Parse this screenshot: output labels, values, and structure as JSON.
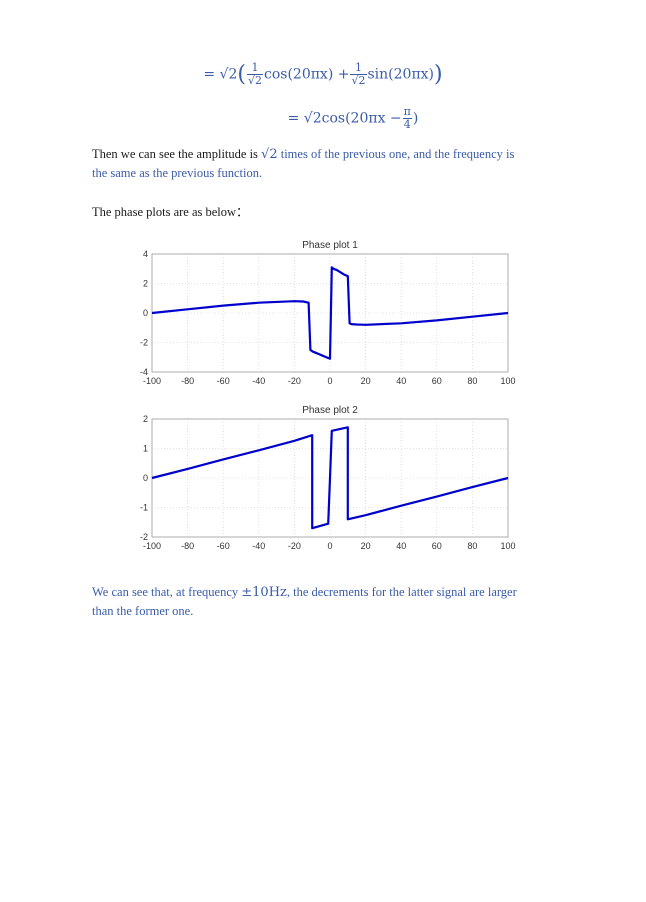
{
  "equations": {
    "line1": {
      "lead": "= √2",
      "open": "(",
      "frac1_num": "1",
      "frac1_den": "√2",
      "term1": "cos(20πx) +",
      "frac2_num": "1",
      "frac2_den": "√2",
      "term2": "sin(20πx)",
      "close": ")"
    },
    "line2": {
      "lead": "= √2cos(20πx −",
      "frac_num": "π",
      "frac_den": "4",
      "close": ")"
    }
  },
  "text": {
    "para1_a": "Then we can see the amplitude is",
    "para1_math": "√2",
    "para1_b": "times of the previous one, and the frequency is",
    "para1_c": "the same as the previous function.",
    "para2": "The phase plots are as below：",
    "para3_a": "We can see that, at frequency",
    "para3_math": "±10Hz",
    "para3_b": ", the decrements for the latter signal are larger",
    "para3_c": "than the former one."
  },
  "chart_data": [
    {
      "type": "line",
      "title": "Phase plot 1",
      "xlim": [
        -100,
        100
      ],
      "ylim": [
        -4,
        4
      ],
      "xticks": [
        "-100",
        "-80",
        "-60",
        "-40",
        "-20",
        "0",
        "20",
        "40",
        "60",
        "80",
        "100"
      ],
      "yticks": [
        "4",
        "2",
        "0",
        "-2",
        "-4"
      ],
      "grid": true,
      "color": "#0000cc",
      "x": [
        -100,
        -80,
        -60,
        -40,
        -20,
        -15,
        -12,
        -11,
        -10,
        -8,
        -6,
        -4,
        -2,
        -1,
        0,
        1,
        2,
        4,
        6,
        8,
        10,
        11,
        12,
        15,
        20,
        40,
        60,
        80,
        100
      ],
      "y": [
        0.0,
        0.25,
        0.5,
        0.7,
        0.8,
        0.78,
        0.7,
        -2.5,
        -2.6,
        -2.7,
        -2.8,
        -2.9,
        -3.0,
        -3.05,
        -3.1,
        3.1,
        3.0,
        2.9,
        2.75,
        2.6,
        2.5,
        -0.7,
        -0.75,
        -0.78,
        -0.8,
        -0.7,
        -0.5,
        -0.25,
        0.0
      ]
    },
    {
      "type": "line",
      "title": "Phase plot 2",
      "xlim": [
        -100,
        100
      ],
      "ylim": [
        -2,
        2
      ],
      "xticks": [
        "-100",
        "-80",
        "-60",
        "-40",
        "-20",
        "0",
        "20",
        "40",
        "60",
        "80",
        "100"
      ],
      "yticks": [
        "2",
        "1",
        "0",
        "-1",
        "-2"
      ],
      "grid": true,
      "color": "#0000cc",
      "x": [
        -100,
        -80,
        -60,
        -40,
        -20,
        -10,
        -10,
        -1,
        0,
        1,
        10,
        10,
        20,
        40,
        60,
        80,
        100
      ],
      "y": [
        0.0,
        0.31,
        0.63,
        0.94,
        1.26,
        1.45,
        -1.7,
        -1.55,
        0.0,
        1.6,
        1.72,
        -1.4,
        -1.26,
        -0.94,
        -0.63,
        -0.31,
        0.0
      ]
    }
  ]
}
